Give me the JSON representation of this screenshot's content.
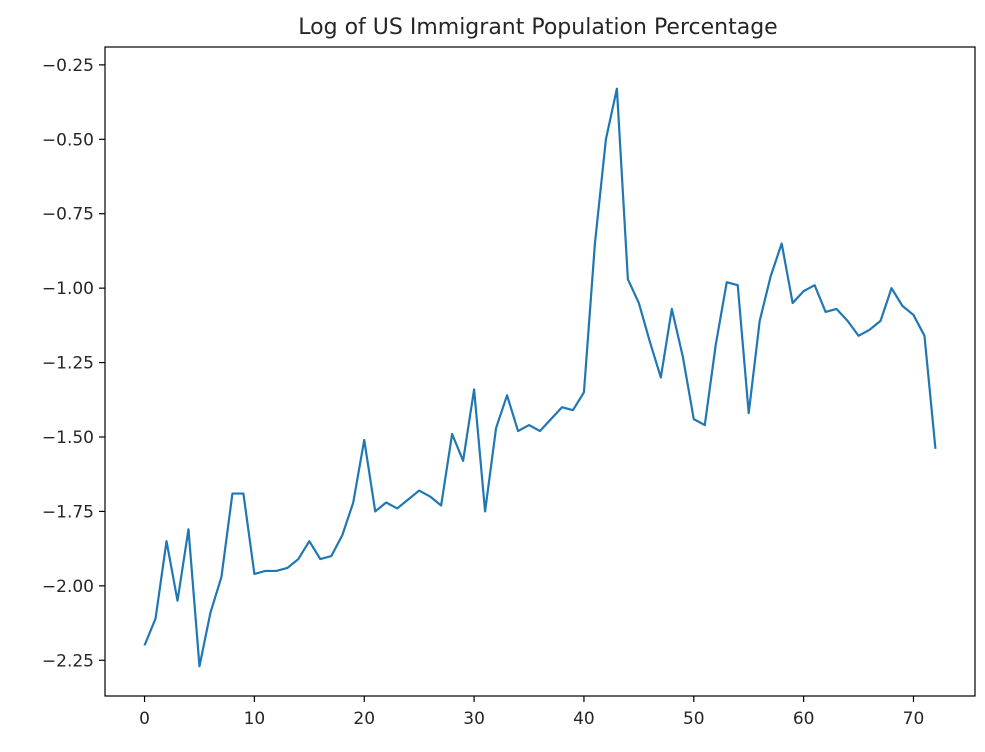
{
  "chart_data": {
    "type": "line",
    "title": "Log of US Immigrant Population Percentage",
    "xlabel": "",
    "ylabel": "",
    "xlim": [
      -3.6,
      75.6
    ],
    "ylim": [
      -2.37,
      -0.19
    ],
    "xticks": [
      0,
      10,
      20,
      30,
      40,
      50,
      60,
      70
    ],
    "xtick_labels": [
      "0",
      "10",
      "20",
      "30",
      "40",
      "50",
      "60",
      "70"
    ],
    "yticks": [
      -2.25,
      -2.0,
      -1.75,
      -1.5,
      -1.25,
      -1.0,
      -0.75,
      -0.5,
      -0.25
    ],
    "ytick_labels": [
      "−2.25",
      "−2.00",
      "−1.75",
      "−1.50",
      "−1.25",
      "−1.00",
      "−0.75",
      "−0.50",
      "−0.25"
    ],
    "grid": false,
    "series": [
      {
        "color": "#1f77b4",
        "x": [
          0,
          1,
          2,
          3,
          4,
          5,
          6,
          7,
          8,
          9,
          10,
          11,
          12,
          13,
          14,
          15,
          16,
          17,
          18,
          19,
          20,
          21,
          22,
          23,
          24,
          25,
          26,
          27,
          28,
          29,
          30,
          31,
          32,
          33,
          34,
          35,
          36,
          37,
          38,
          39,
          40,
          41,
          42,
          43,
          44,
          45,
          46,
          47,
          48,
          49,
          50,
          51,
          52,
          53,
          54,
          55,
          56,
          57,
          58,
          59,
          60,
          61,
          62,
          63,
          64,
          65,
          66,
          67,
          68,
          69,
          70,
          71,
          72
        ],
        "y": [
          -2.2,
          -2.11,
          -1.85,
          -2.05,
          -1.81,
          -2.27,
          -2.09,
          -1.97,
          -1.69,
          -1.69,
          -1.96,
          -1.95,
          -1.95,
          -1.94,
          -1.91,
          -1.85,
          -1.91,
          -1.9,
          -1.83,
          -1.72,
          -1.51,
          -1.75,
          -1.72,
          -1.74,
          -1.71,
          -1.68,
          -1.7,
          -1.73,
          -1.49,
          -1.58,
          -1.34,
          -1.75,
          -1.47,
          -1.36,
          -1.48,
          -1.46,
          -1.48,
          -1.44,
          -1.4,
          -1.41,
          -1.35,
          -0.85,
          -0.5,
          -0.33,
          -0.97,
          -1.05,
          -1.18,
          -1.3,
          -1.07,
          -1.23,
          -1.44,
          -1.46,
          -1.19,
          -0.98,
          -0.99,
          -1.42,
          -1.11,
          -0.96,
          -0.85,
          -1.05,
          -1.01,
          -0.99,
          -1.08,
          -1.07,
          -1.11,
          -1.16,
          -1.14,
          -1.11,
          -1.0,
          -1.06,
          -1.09,
          -1.16,
          -1.54
        ]
      }
    ]
  }
}
